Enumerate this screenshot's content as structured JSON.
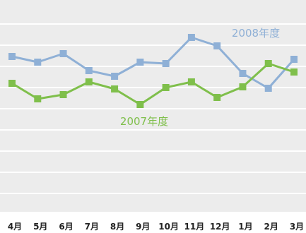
{
  "chart_data": {
    "type": "line",
    "categories": [
      "4月",
      "5月",
      "6月",
      "7月",
      "8月",
      "9月",
      "10月",
      "11月",
      "12月",
      "1月",
      "2月",
      "3月"
    ],
    "series": [
      {
        "name": "2008年度",
        "values": [
          80,
          88,
          76,
          100,
          108,
          88,
          90,
          53,
          65,
          104,
          125,
          84
        ],
        "color": "#8fb0d6"
      },
      {
        "name": "2007年度",
        "values": [
          118,
          140,
          134,
          116,
          126,
          148,
          124,
          116,
          138,
          123,
          90,
          102
        ],
        "color": "#7fbf4b"
      }
    ],
    "ylim": [
      0,
      300
    ],
    "y_inverted": true,
    "grid": true,
    "legend": "inline labels"
  },
  "colors": {
    "background": "#ffffff",
    "panel": "#ececec",
    "grid": "#ffffff",
    "tick_text": "#222222"
  }
}
